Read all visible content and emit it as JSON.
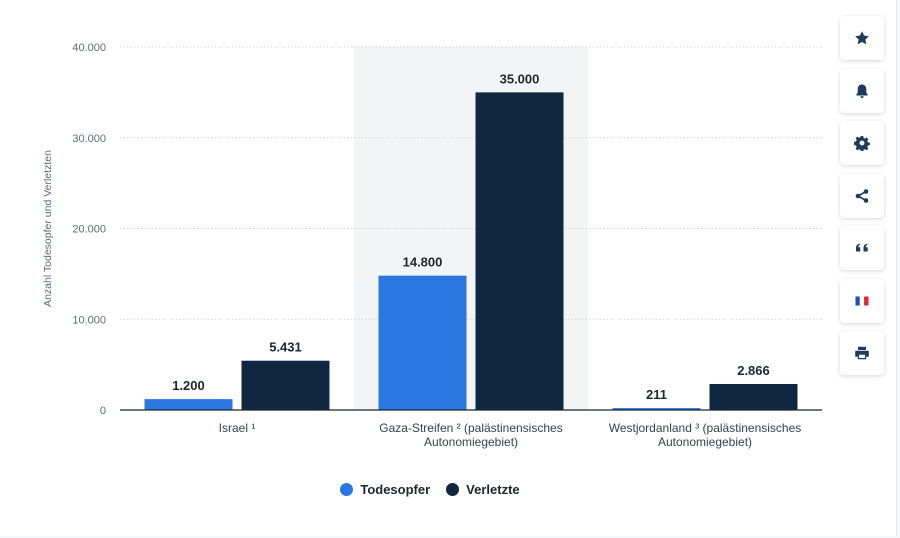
{
  "chart_data": {
    "type": "bar",
    "categories": [
      [
        "Israel ¹"
      ],
      [
        "Gaza-Streifen ² (palästinensisches",
        "Autonomiegebiet)"
      ],
      [
        "Westjordanland ³ (palästinensisches",
        "Autonomiegebiet)"
      ]
    ],
    "series": [
      {
        "name": "Todesopfer",
        "values": [
          1200,
          14800,
          211
        ],
        "labels": [
          "1.200",
          "14.800",
          "211"
        ],
        "color": "#2a77e0"
      },
      {
        "name": "Verletzte",
        "values": [
          5431,
          35000,
          2866
        ],
        "labels": [
          "5.431",
          "35.000",
          "2.866"
        ],
        "color": "#0f2740"
      }
    ],
    "ylabel": "Anzahl Todesopfer und Verletzten",
    "ylim": [
      0,
      40000
    ],
    "yticks": [
      0,
      10000,
      20000,
      30000,
      40000
    ],
    "ytick_labels": [
      "0",
      "10.000",
      "20.000",
      "30.000",
      "40.000"
    ],
    "grid": true,
    "highlighted_category": 1,
    "highlight_color": "#f3f4f6",
    "legend_position": "bottom-center"
  },
  "toolbar": {
    "buttons": [
      {
        "icon": "star-icon",
        "name": "favorite-button"
      },
      {
        "icon": "bell-icon",
        "name": "notification-button"
      },
      {
        "icon": "gear-icon",
        "name": "settings-button"
      },
      {
        "icon": "share-icon",
        "name": "share-button"
      },
      {
        "icon": "quote-icon",
        "name": "cite-button"
      },
      {
        "icon": "flag-icon",
        "name": "language-button"
      },
      {
        "icon": "print-icon",
        "name": "print-button"
      }
    ],
    "icon_color": "#1f3a5f"
  }
}
